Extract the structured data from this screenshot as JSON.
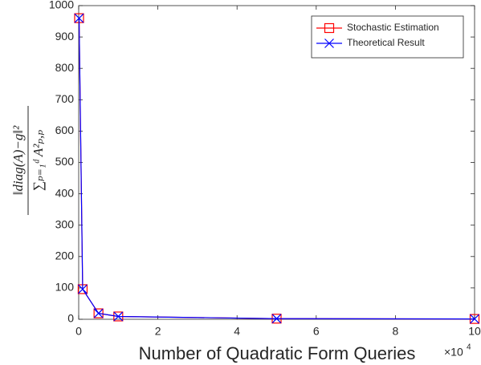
{
  "chart_data": {
    "type": "line",
    "xlabel": "Number of Quadratic Form Queries",
    "x_scale_base": "×10",
    "x_scale_exponent": "4",
    "ylabel_numerator": "‖diag(A)−g‖²",
    "ylabel_denominator": "∑ₚ₌₁ᵈ A²ₚ,ₚ",
    "x": [
      0.01,
      0.1,
      0.5,
      1,
      5,
      10
    ],
    "series": [
      {
        "name": "Stochastic Estimation",
        "color": "#ff0000",
        "marker": "square",
        "values": [
          960,
          96,
          19,
          9,
          2,
          1
        ]
      },
      {
        "name": "Theoretical Result",
        "color": "#0000ff",
        "marker": "x",
        "values": [
          960,
          96,
          19,
          9,
          2,
          1
        ]
      }
    ],
    "xlim": [
      0,
      10
    ],
    "xticks": [
      0,
      2,
      4,
      6,
      8,
      10
    ],
    "ylim": [
      0,
      1000
    ],
    "yticks": [
      0,
      100,
      200,
      300,
      400,
      500,
      600,
      700,
      800,
      900,
      1000
    ],
    "legend": "upper right"
  }
}
